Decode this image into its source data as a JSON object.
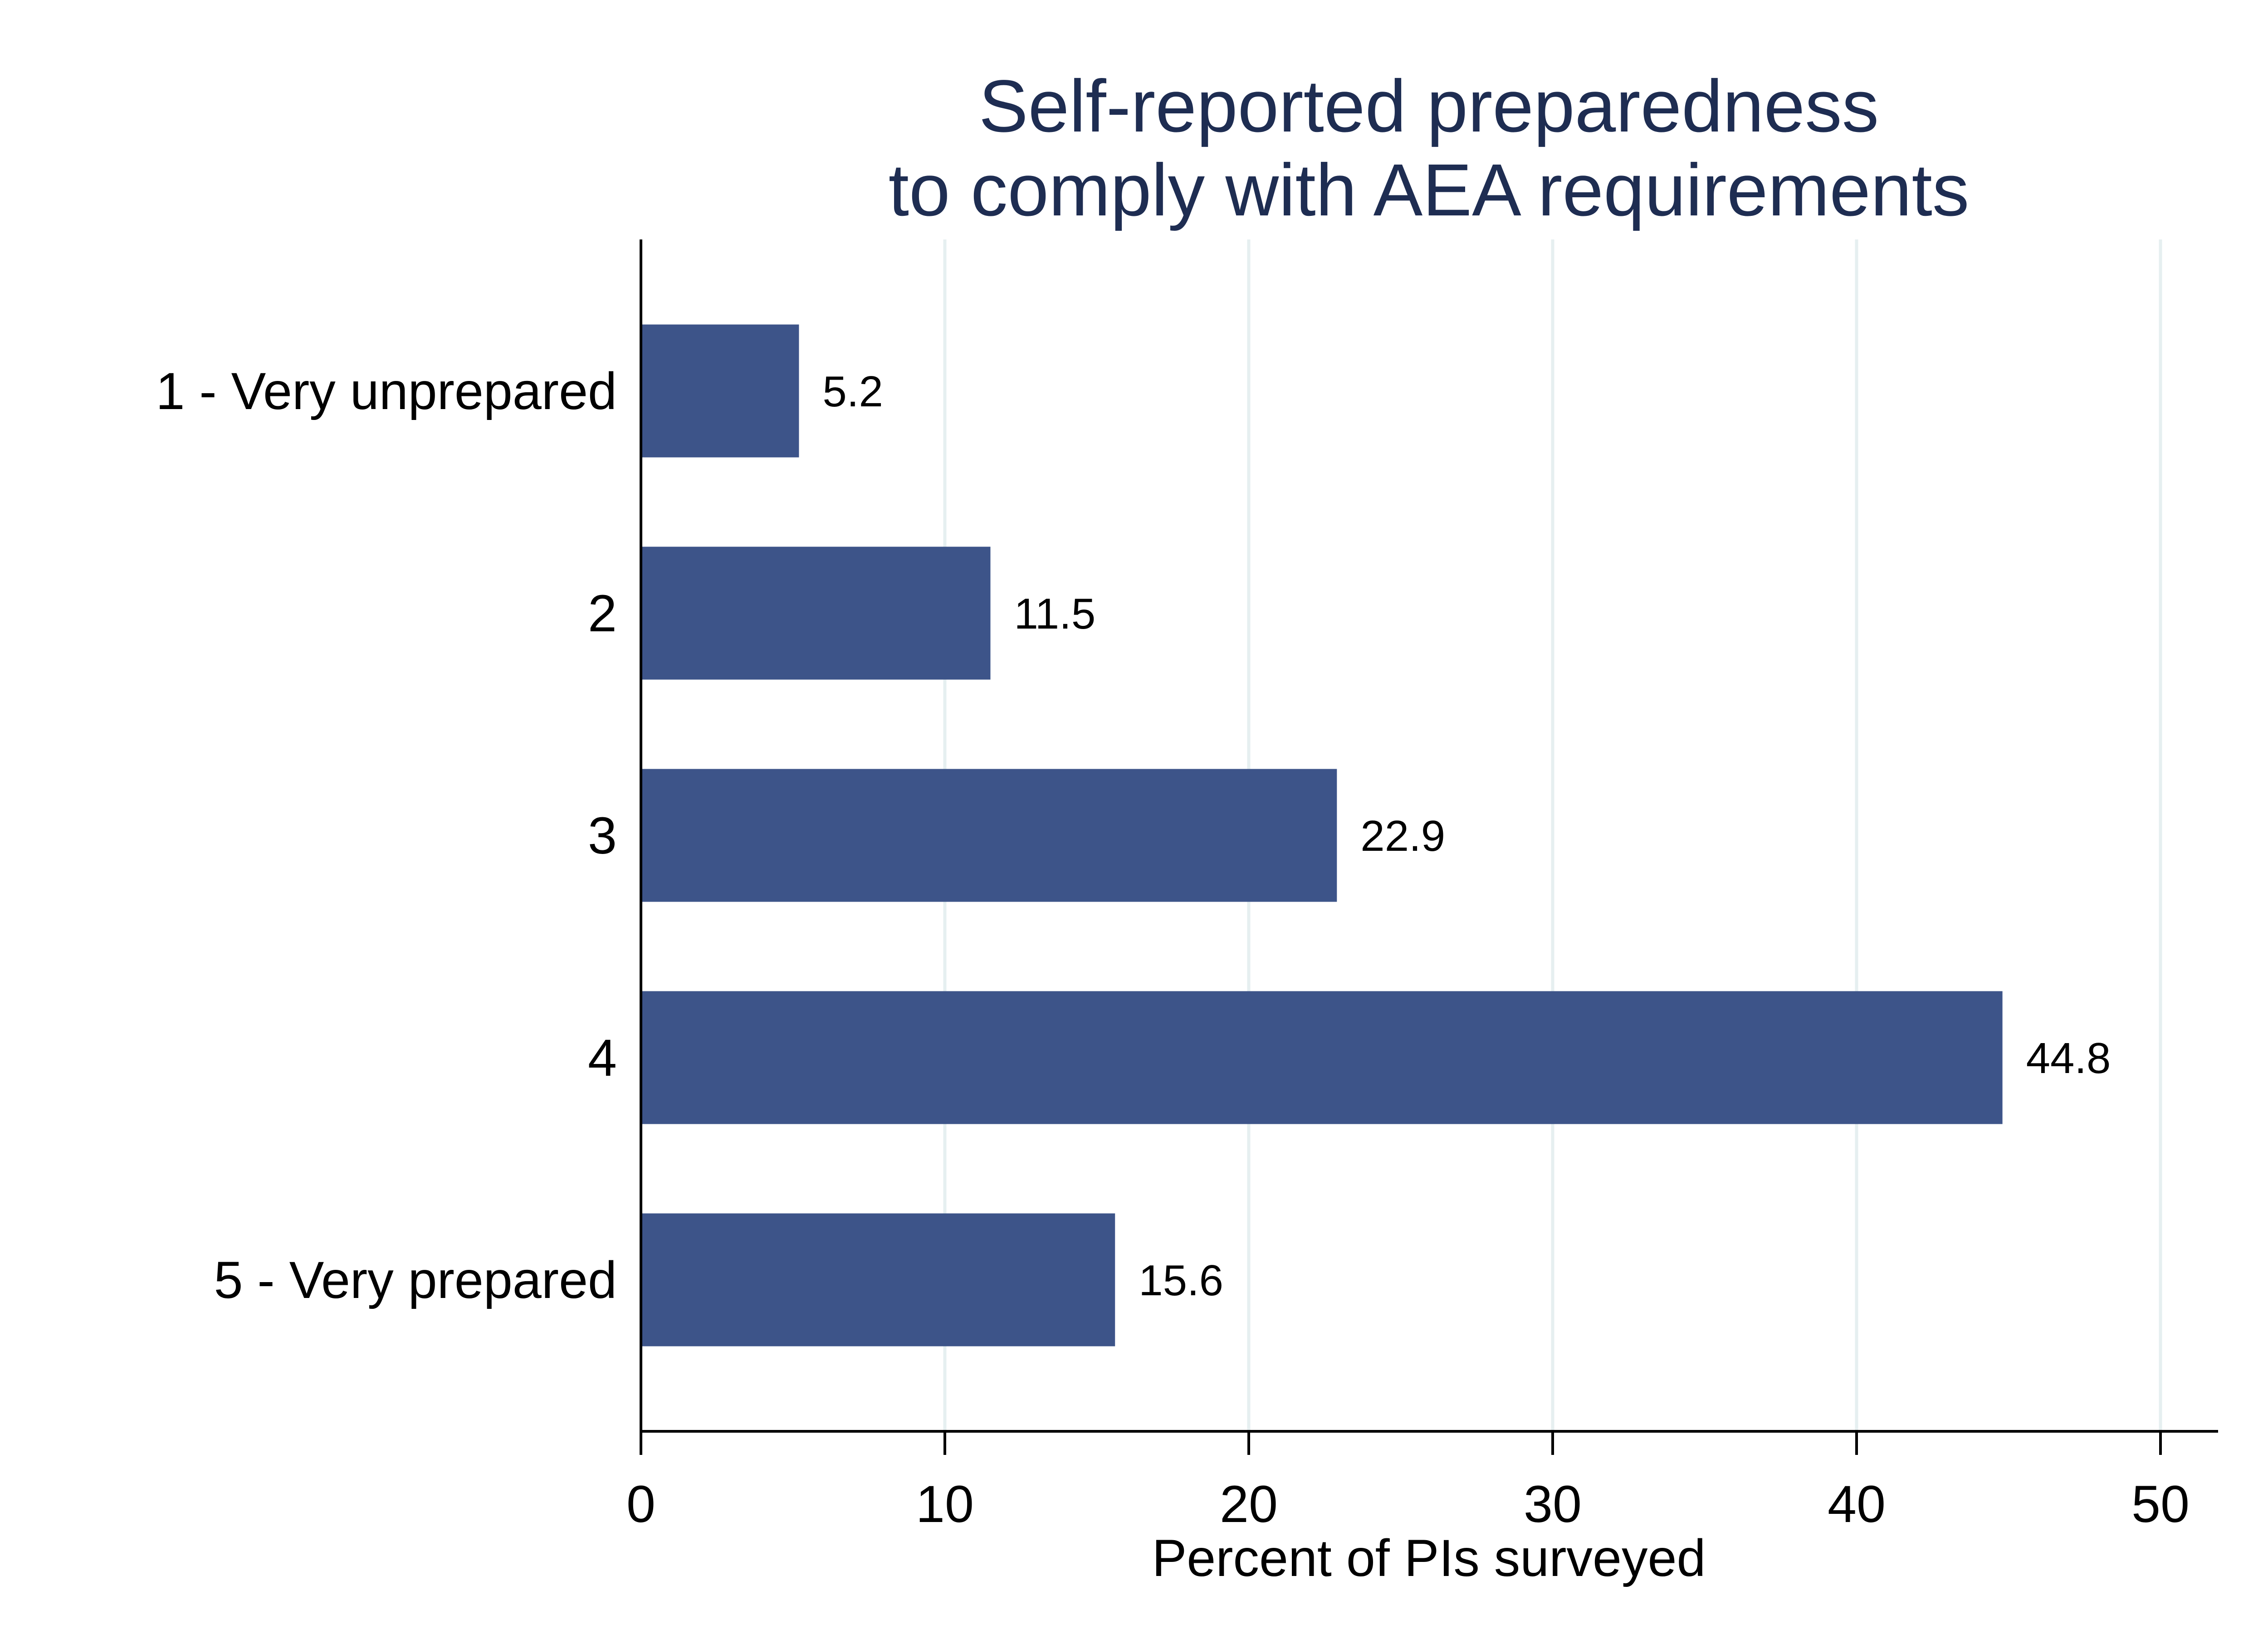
{
  "chart_data": {
    "type": "bar",
    "orientation": "horizontal",
    "title": [
      "Self-reported preparedness",
      "to comply with AEA requirements"
    ],
    "categories": [
      "1 - Very unprepared",
      "2",
      "3",
      "4",
      "5 - Very prepared"
    ],
    "values": [
      5.2,
      11.5,
      22.9,
      44.8,
      15.6
    ],
    "data_labels": [
      "5.2",
      "11.5",
      "22.9",
      "44.8",
      "15.6"
    ],
    "xlabel": "Percent of PIs surveyed",
    "ylabel": "",
    "xlim": [
      0,
      52
    ],
    "xticks": [
      0,
      10,
      20,
      30,
      40,
      50
    ],
    "grid": "vertical",
    "legend": "none",
    "colors": {
      "bar": "#3d5489",
      "title": "#1e2d52",
      "grid": "#e6eff0",
      "axis": "#000000"
    }
  }
}
